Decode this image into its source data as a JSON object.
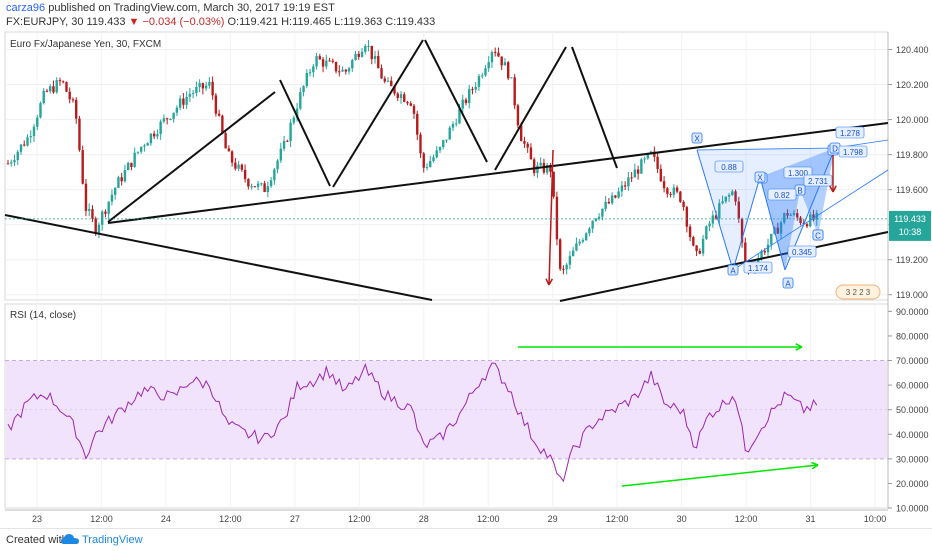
{
  "header": {
    "author": "carza96",
    "published": "published on TradingView.com, March 30, 2017 19:19 EST",
    "symbol": "FX:EURJPY, 30",
    "last": "119.433",
    "change": "−0.034 (−0.03%)",
    "ohlc": "O:119.421 H:119.465 L:119.363 C:119.433"
  },
  "footer": {
    "created_with": "Created with",
    "brand": "TradingView"
  },
  "colors": {
    "bull": "#26a69a",
    "bear": "#b71c1c",
    "rsi_line": "#9c27b0",
    "rsi_band": "#f1e3fb",
    "pattern": "#2979ff",
    "arrow_red": "#b71c1c",
    "arrow_green": "#00e600"
  },
  "chart_data": [
    {
      "type": "candlestick",
      "title": "Euro Fx/Japanese Yen, 30, FXCM",
      "ylim": [
        118.97,
        120.5
      ],
      "y_ticks": [
        "120.400",
        "120.200",
        "120.000",
        "119.800",
        "119.600",
        "119.400",
        "119.200",
        "119.000"
      ],
      "x_ticks": [
        "23",
        "12:00",
        "24",
        "12:00",
        "27",
        "12:00",
        "28",
        "12:00",
        "29",
        "12:00",
        "30",
        "12:00",
        "31",
        "10:00"
      ],
      "current_price": "119.433",
      "countdown": "10:38",
      "price_path": [
        [
          0,
          119.75
        ],
        [
          0.3,
          119.9
        ],
        [
          0.55,
          120.15
        ],
        [
          0.8,
          120.22
        ],
        [
          1.0,
          120.05
        ],
        [
          1.15,
          119.5
        ],
        [
          1.3,
          119.38
        ],
        [
          1.6,
          119.62
        ],
        [
          2.0,
          119.86
        ],
        [
          2.45,
          120.05
        ],
        [
          2.7,
          120.15
        ],
        [
          3.0,
          120.2
        ],
        [
          3.25,
          119.8
        ],
        [
          3.55,
          119.65
        ],
        [
          3.8,
          119.6
        ],
        [
          4.1,
          119.85
        ],
        [
          4.3,
          120.1
        ],
        [
          4.55,
          120.35
        ],
        [
          5.0,
          120.27
        ],
        [
          5.3,
          120.45
        ],
        [
          5.6,
          120.2
        ],
        [
          6.0,
          120.1
        ],
        [
          6.15,
          119.72
        ],
        [
          6.4,
          119.82
        ],
        [
          6.7,
          120.05
        ],
        [
          7.0,
          120.25
        ],
        [
          7.2,
          120.42
        ],
        [
          7.45,
          120.25
        ],
        [
          7.6,
          119.92
        ],
        [
          7.8,
          119.72
        ],
        [
          8.05,
          119.72
        ],
        [
          8.2,
          119.1
        ],
        [
          8.4,
          119.25
        ],
        [
          8.7,
          119.45
        ],
        [
          9.0,
          119.55
        ],
        [
          9.3,
          119.7
        ],
        [
          9.55,
          119.8
        ],
        [
          9.75,
          119.62
        ],
        [
          10.0,
          119.55
        ],
        [
          10.2,
          119.2
        ],
        [
          10.4,
          119.4
        ],
        [
          10.6,
          119.52
        ],
        [
          10.78,
          119.6
        ],
        [
          10.95,
          119.12
        ],
        [
          11.1,
          119.2
        ],
        [
          11.3,
          119.3
        ],
        [
          11.55,
          119.47
        ],
        [
          11.8,
          119.42
        ],
        [
          12.0,
          119.433
        ]
      ],
      "rsi": {
        "title": "RSI (14, close)",
        "ylim": [
          10,
          93
        ],
        "y_ticks": [
          "90.0000",
          "80.0000",
          "70.0000",
          "60.0000",
          "50.0000",
          "40.0000",
          "30.0000",
          "20.0000",
          "10.0000"
        ],
        "band": [
          30,
          70
        ],
        "mid": 50,
        "path": [
          [
            0,
            42
          ],
          [
            0.3,
            53
          ],
          [
            0.55,
            57
          ],
          [
            0.8,
            50
          ],
          [
            1.0,
            42
          ],
          [
            1.15,
            31
          ],
          [
            1.3,
            40
          ],
          [
            1.6,
            48
          ],
          [
            2.0,
            58
          ],
          [
            2.45,
            55
          ],
          [
            2.7,
            62
          ],
          [
            3.0,
            60
          ],
          [
            3.25,
            44
          ],
          [
            3.55,
            40
          ],
          [
            3.8,
            38
          ],
          [
            4.1,
            46
          ],
          [
            4.3,
            60
          ],
          [
            4.55,
            62
          ],
          [
            4.75,
            66
          ],
          [
            5.0,
            57
          ],
          [
            5.3,
            66
          ],
          [
            5.6,
            56
          ],
          [
            6.0,
            50
          ],
          [
            6.15,
            35
          ],
          [
            6.4,
            38
          ],
          [
            6.7,
            48
          ],
          [
            7.0,
            62
          ],
          [
            7.2,
            68
          ],
          [
            7.45,
            58
          ],
          [
            7.6,
            48
          ],
          [
            7.8,
            38
          ],
          [
            8.05,
            30
          ],
          [
            8.2,
            20
          ],
          [
            8.4,
            34
          ],
          [
            8.7,
            45
          ],
          [
            9.0,
            50
          ],
          [
            9.3,
            55
          ],
          [
            9.55,
            64
          ],
          [
            9.75,
            52
          ],
          [
            10.0,
            50
          ],
          [
            10.2,
            35
          ],
          [
            10.4,
            48
          ],
          [
            10.6,
            52
          ],
          [
            10.78,
            57
          ],
          [
            10.95,
            33
          ],
          [
            11.1,
            40
          ],
          [
            11.3,
            48
          ],
          [
            11.55,
            56
          ],
          [
            11.8,
            50
          ],
          [
            12.0,
            52
          ]
        ]
      },
      "harmonic_labels": [
        "X",
        "A",
        "B",
        "C",
        "D",
        "X",
        "A",
        "B",
        "C",
        "D"
      ],
      "harmonic_ratios": [
        "1.278",
        "1.798",
        "0.88",
        "1.300",
        "2.731",
        "0.82",
        "1.174",
        "0.345"
      ],
      "badge": "3 2 2 3"
    }
  ]
}
